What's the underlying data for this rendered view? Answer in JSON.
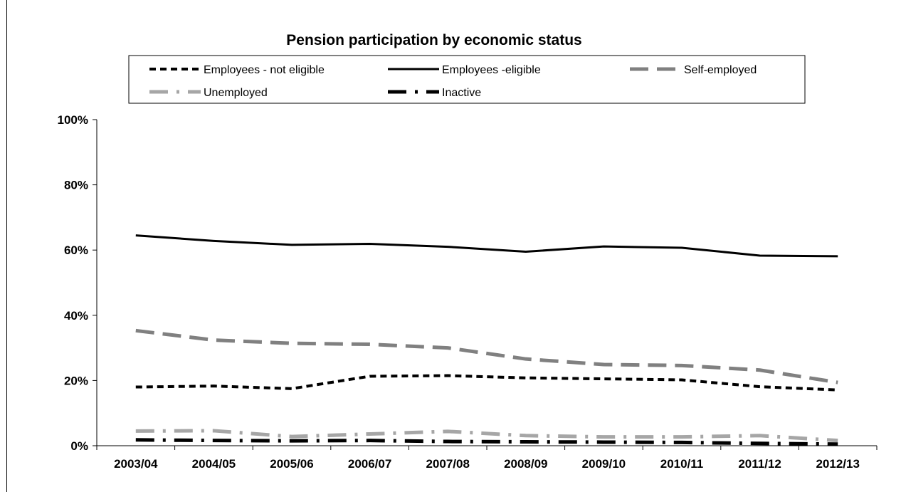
{
  "chart_data": {
    "type": "line",
    "title": "Pension participation by economic status",
    "categories": [
      "2003/04",
      "2004/05",
      "2005/06",
      "2006/07",
      "2007/08",
      "2008/09",
      "2009/10",
      "2010/11",
      "2011/12",
      "2012/13"
    ],
    "y_tick_labels": [
      "0%",
      "20%",
      "40%",
      "60%",
      "80%",
      "100%"
    ],
    "ylim": [
      0,
      100
    ],
    "grid": false,
    "legend_position": "top",
    "series": [
      {
        "name": "Employees - not eligible",
        "style": "short-dash",
        "color": "#000000",
        "values": [
          18,
          18.3,
          17.5,
          21.3,
          21.5,
          20.8,
          20.5,
          20.2,
          18.1,
          17.1
        ]
      },
      {
        "name": "Employees -eligible",
        "style": "solid",
        "color": "#000000",
        "values": [
          64.5,
          62.8,
          61.6,
          61.9,
          61,
          59.5,
          61.1,
          60.7,
          58.3,
          58.1
        ]
      },
      {
        "name": "Self-employed",
        "style": "long-dash",
        "color": "#808080",
        "values": [
          35.3,
          32.4,
          31.4,
          31.1,
          30,
          26.6,
          24.9,
          24.6,
          23.2,
          19.4
        ]
      },
      {
        "name": "Unemployed",
        "style": "long-dash-dot",
        "color": "#a6a6a6",
        "values": [
          4.5,
          4.6,
          2.8,
          3.6,
          4.4,
          3.1,
          2.7,
          2.7,
          3.1,
          1.6
        ]
      },
      {
        "name": "Inactive",
        "style": "long-dash-dot-thick",
        "color": "#000000",
        "values": [
          1.8,
          1.6,
          1.5,
          1.6,
          1.3,
          1.2,
          1.1,
          1.0,
          0.7,
          0.5
        ]
      }
    ]
  }
}
